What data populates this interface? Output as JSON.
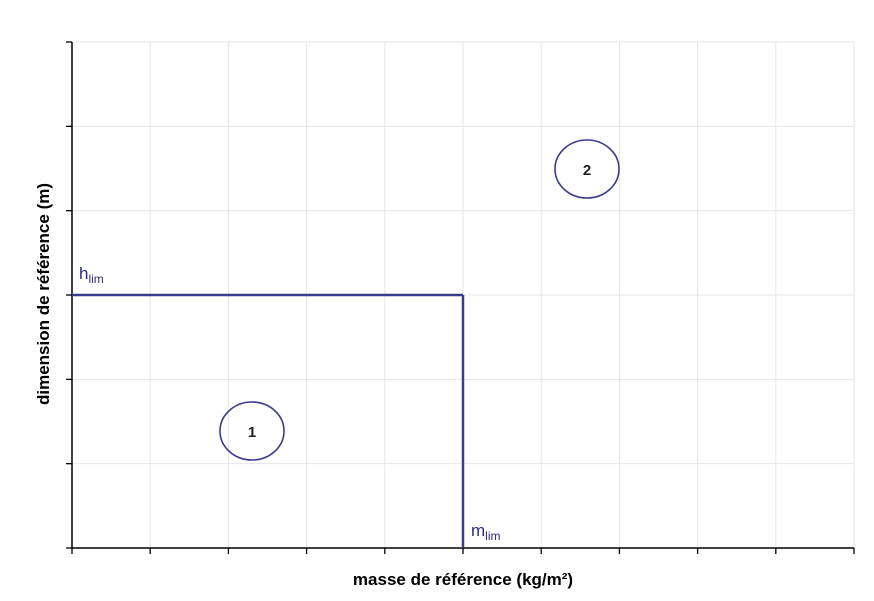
{
  "diagram": {
    "xlabel": "masse de référence (kg/m²)",
    "ylabel": "dimension de référence (m)",
    "h_limit": {
      "base": "h",
      "sub": "lim"
    },
    "m_limit": {
      "base": "m",
      "sub": "lim"
    },
    "zones": [
      {
        "label": "1"
      },
      {
        "label": "2"
      }
    ],
    "x_tick_count": 10,
    "y_tick_count": 6,
    "h_limit_level": 3,
    "m_limit_level": 5,
    "grid": true,
    "colors": {
      "axis": "#000000",
      "grid": "#e6e6e6",
      "boundary": "#3b3b8c",
      "label": "#2b2b7a"
    }
  }
}
